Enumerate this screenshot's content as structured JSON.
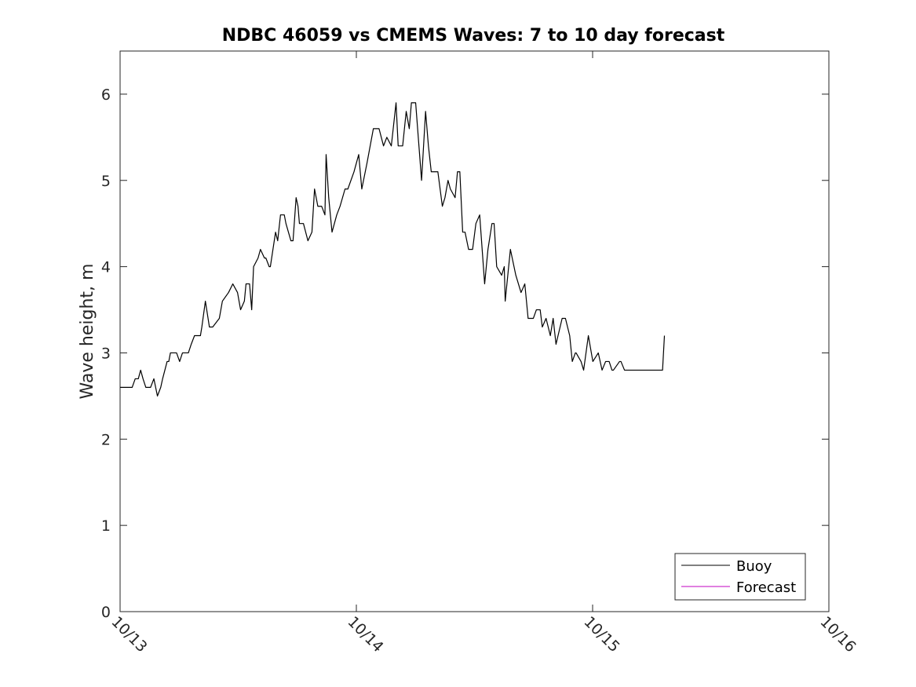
{
  "chart_data": {
    "type": "line",
    "title": "NDBC 46059 vs CMEMS Waves: 7 to 10 day forecast",
    "xlabel": "",
    "ylabel": "Wave height, m",
    "x_range": [
      "10/13",
      "10/16"
    ],
    "ylim": [
      0,
      6.5
    ],
    "x_ticks": [
      "10/13",
      "10/14",
      "10/15",
      "10/16"
    ],
    "y_ticks": [
      0,
      1,
      2,
      3,
      4,
      5,
      6
    ],
    "grid": false,
    "legend": {
      "placement": "bottom-right",
      "entries": [
        "Buoy",
        "Forecast"
      ]
    },
    "series": [
      {
        "name": "Buoy",
        "color": "#000000",
        "x_unit": "days after 10/13 00:00",
        "x": [
          0.0,
          0.051,
          0.064,
          0.077,
          0.087,
          0.097,
          0.109,
          0.129,
          0.143,
          0.158,
          0.172,
          0.18,
          0.199,
          0.206,
          0.213,
          0.239,
          0.252,
          0.264,
          0.289,
          0.301,
          0.315,
          0.34,
          0.346,
          0.361,
          0.378,
          0.392,
          0.42,
          0.433,
          0.459,
          0.477,
          0.497,
          0.51,
          0.526,
          0.533,
          0.548,
          0.557,
          0.565,
          0.584,
          0.594,
          0.611,
          0.617,
          0.631,
          0.636,
          0.658,
          0.667,
          0.679,
          0.695,
          0.702,
          0.723,
          0.732,
          0.745,
          0.753,
          0.759,
          0.776,
          0.795,
          0.812,
          0.823,
          0.837,
          0.853,
          0.867,
          0.872,
          0.883,
          0.897,
          0.917,
          0.931,
          0.952,
          0.964,
          0.99,
          1.01,
          1.023,
          1.045,
          1.072,
          1.083,
          1.096,
          1.115,
          1.129,
          1.148,
          1.168,
          1.177,
          1.196,
          1.211,
          1.224,
          1.233,
          1.251,
          1.276,
          1.293,
          1.305,
          1.317,
          1.333,
          1.345,
          1.364,
          1.375,
          1.388,
          1.398,
          1.418,
          1.428,
          1.438,
          1.45,
          1.46,
          1.475,
          1.492,
          1.506,
          1.522,
          1.543,
          1.557,
          1.574,
          1.583,
          1.594,
          1.615,
          1.626,
          1.63,
          1.652,
          1.675,
          1.697,
          1.713,
          1.727,
          1.731,
          1.749,
          1.762,
          1.778,
          1.787,
          1.803,
          1.821,
          1.833,
          1.845,
          1.871,
          1.885,
          1.903,
          1.914,
          1.927,
          1.93,
          1.951,
          1.962,
          1.982,
          2.001,
          2.024,
          2.04,
          2.055,
          2.07,
          2.082,
          2.088,
          2.114,
          2.12,
          2.135,
          2.142,
          2.15,
          2.161,
          2.175,
          2.191,
          2.203,
          2.228,
          2.233,
          2.245,
          2.256,
          2.271,
          2.279,
          2.289,
          2.296,
          2.304
        ],
        "y": [
          2.6,
          2.6,
          2.7,
          2.7,
          2.8,
          2.7,
          2.6,
          2.6,
          2.7,
          2.5,
          2.6,
          2.7,
          2.9,
          2.9,
          3.0,
          3.0,
          2.9,
          3.0,
          3.0,
          3.1,
          3.2,
          3.2,
          3.3,
          3.6,
          3.3,
          3.3,
          3.4,
          3.6,
          3.7,
          3.8,
          3.7,
          3.5,
          3.6,
          3.8,
          3.8,
          3.5,
          4.0,
          4.1,
          4.2,
          4.1,
          4.1,
          4.0,
          4.0,
          4.4,
          4.3,
          4.6,
          4.6,
          4.5,
          4.3,
          4.3,
          4.8,
          4.7,
          4.5,
          4.5,
          4.3,
          4.4,
          4.9,
          4.7,
          4.7,
          4.6,
          5.3,
          4.8,
          4.4,
          4.6,
          4.7,
          4.9,
          4.9,
          5.1,
          5.3,
          4.9,
          5.2,
          5.6,
          5.6,
          5.6,
          5.4,
          5.5,
          5.4,
          5.9,
          5.4,
          5.4,
          5.8,
          5.6,
          5.9,
          5.9,
          5.0,
          5.8,
          5.4,
          5.1,
          5.1,
          5.1,
          4.7,
          4.8,
          5.0,
          4.9,
          4.8,
          5.1,
          5.1,
          4.4,
          4.4,
          4.2,
          4.2,
          4.5,
          4.6,
          3.8,
          4.2,
          4.5,
          4.5,
          4.0,
          3.9,
          4.0,
          3.6,
          4.2,
          3.9,
          3.7,
          3.8,
          3.4,
          3.4,
          3.4,
          3.5,
          3.5,
          3.3,
          3.4,
          3.2,
          3.4,
          3.1,
          3.4,
          3.4,
          3.2,
          2.9,
          3.0,
          3.0,
          2.9,
          2.8,
          3.2,
          2.9,
          3.0,
          2.8,
          2.9,
          2.9,
          2.8,
          2.8,
          2.9,
          2.9,
          2.8,
          2.8,
          2.8,
          2.8,
          2.8,
          2.8,
          2.8,
          2.8,
          2.8,
          2.8,
          2.8,
          2.8,
          2.8,
          2.8,
          2.8,
          3.2
        ]
      },
      {
        "name": "Forecast",
        "color": "#c000c0",
        "x": [],
        "y": []
      }
    ]
  }
}
